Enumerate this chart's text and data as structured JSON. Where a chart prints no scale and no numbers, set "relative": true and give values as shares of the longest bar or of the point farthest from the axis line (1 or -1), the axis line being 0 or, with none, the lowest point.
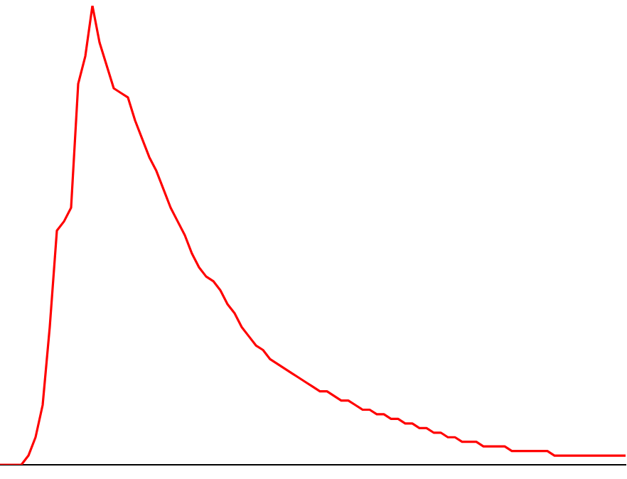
{
  "chart_data": {
    "type": "line",
    "relative": true,
    "categories": [
      null,
      null,
      null,
      null,
      null,
      null,
      null,
      null,
      null,
      null,
      null,
      null,
      null,
      null,
      null,
      null,
      null,
      null,
      null,
      null,
      null,
      null,
      null,
      null,
      null,
      null,
      null,
      null,
      null,
      null,
      null,
      null,
      null,
      null,
      null,
      null,
      null,
      null,
      null,
      null,
      null,
      null,
      null,
      null,
      null,
      null,
      null,
      null,
      null,
      null,
      null,
      null,
      null,
      null,
      null,
      null,
      null,
      null,
      null,
      null,
      null,
      null,
      null,
      null,
      null,
      null,
      null,
      null,
      null,
      null,
      null,
      null,
      null,
      null,
      null,
      null,
      null,
      null,
      null,
      null,
      null,
      null,
      null,
      null,
      null,
      null,
      null,
      null,
      null
    ],
    "series": [
      {
        "color": "#ff0000",
        "values": [
          0,
          0,
          0,
          0,
          0.02,
          0.06,
          0.13,
          0.3,
          0.51,
          0.53,
          0.56,
          0.83,
          0.89,
          1,
          0.92,
          0.87,
          0.82,
          0.81,
          0.8,
          0.75,
          0.71,
          0.67,
          0.64,
          0.6,
          0.56,
          0.53,
          0.5,
          0.46,
          0.43,
          0.41,
          0.4,
          0.38,
          0.35,
          0.33,
          0.3,
          0.28,
          0.26,
          0.25,
          0.23,
          0.22,
          0.21,
          0.2,
          0.19,
          0.18,
          0.17,
          0.16,
          0.16,
          0.15,
          0.14,
          0.14,
          0.13,
          0.12,
          0.12,
          0.11,
          0.11,
          0.1,
          0.1,
          0.09,
          0.09,
          0.08,
          0.08,
          0.07,
          0.07,
          0.06,
          0.06,
          0.05,
          0.05,
          0.05,
          0.04,
          0.04,
          0.04,
          0.04,
          0.03,
          0.03,
          0.03,
          0.03,
          0.03,
          0.03,
          0.02,
          0.02,
          0.02,
          0.02,
          0.02,
          0.02,
          0.02,
          0.02,
          0.02,
          0.02,
          0.02
        ]
      }
    ]
  }
}
